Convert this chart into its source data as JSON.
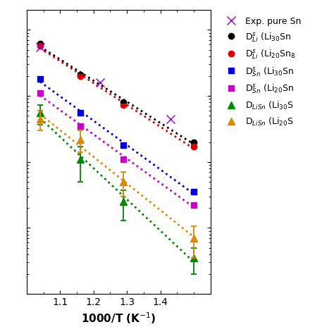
{
  "xlabel": "1000/T (K$^{-1}$)",
  "xlim": [
    1.0,
    1.55
  ],
  "xticks": [
    1.1,
    1.2,
    1.3,
    1.4
  ],
  "background_color": "#ffffff",
  "series": [
    {
      "label": "Exp. pure Sn",
      "color": "#9900cc",
      "marker": "x",
      "linestyle": "none",
      "x": [
        1.04,
        1.22,
        1.43
      ],
      "y": [
        5.5e-09,
        1.6e-09,
        4.5e-10
      ],
      "yerr": null,
      "marker_size": 9,
      "lw": 0,
      "zorder": 5
    },
    {
      "label": "D$^{s}_{Li}$ (Li$_{30}$Sn",
      "color": "#000000",
      "marker": "o",
      "linestyle": "dotted",
      "x": [
        1.04,
        1.16,
        1.29,
        1.5
      ],
      "y": [
        6.2e-09,
        2.1e-09,
        8e-10,
        2e-10
      ],
      "yerr": [
        null,
        8e-11,
        2e-11,
        5e-12
      ],
      "marker_size": 6,
      "lw": 2.0,
      "zorder": 4
    },
    {
      "label": "D$^{s}_{Li}$ (Li$_{20}$Sn$_8$",
      "color": "#dd0000",
      "marker": "o",
      "linestyle": "dotted",
      "x": [
        1.04,
        1.16,
        1.29,
        1.5
      ],
      "y": [
        5.8e-09,
        2e-09,
        7.2e-10,
        1.7e-10
      ],
      "yerr": [
        null,
        8e-11,
        1.5e-11,
        5e-12
      ],
      "marker_size": 6,
      "lw": 2.0,
      "zorder": 4
    },
    {
      "label": "D$^{s}_{Sn}$ (Li$_{30}$Sn",
      "color": "#0000dd",
      "marker": "s",
      "linestyle": "dotted",
      "x": [
        1.04,
        1.16,
        1.29,
        1.5
      ],
      "y": [
        1.8e-09,
        5.5e-10,
        1.8e-10,
        3.5e-11
      ],
      "yerr": [
        null,
        2e-11,
        5e-12,
        1e-12
      ],
      "marker_size": 6,
      "lw": 2.0,
      "zorder": 4
    },
    {
      "label": "D$^{s}_{Sn}$ (Li$_{20}$Sn",
      "color": "#cc00cc",
      "marker": "s",
      "linestyle": "dotted",
      "x": [
        1.04,
        1.16,
        1.29,
        1.5
      ],
      "y": [
        1.1e-09,
        3.5e-10,
        1.1e-10,
        2.2e-11
      ],
      "yerr": [
        null,
        2e-11,
        4e-12,
        8e-13
      ],
      "marker_size": 6,
      "lw": 2.0,
      "zorder": 4
    },
    {
      "label": "D$_{LiSn}$ (Li$_{30}$S",
      "color": "#008800",
      "marker": "^",
      "linestyle": "dotted",
      "x": [
        1.04,
        1.16,
        1.29,
        1.5
      ],
      "y": [
        5.5e-10,
        1.1e-10,
        2.5e-11,
        3.5e-12
      ],
      "yerr": [
        1.8e-10,
        6e-11,
        1.2e-11,
        1.5e-12
      ],
      "marker_size": 7,
      "lw": 2.0,
      "zorder": 4
    },
    {
      "label": "D$_{LiSn}$ (Li$_{20}$S",
      "color": "#dd8800",
      "marker": "^",
      "linestyle": "dotted",
      "x": [
        1.04,
        1.16,
        1.29,
        1.5
      ],
      "y": [
        4.5e-10,
        2.2e-10,
        5e-11,
        7e-12
      ],
      "yerr": [
        1.5e-10,
        8e-11,
        2e-11,
        3.5e-12
      ],
      "marker_size": 7,
      "lw": 2.0,
      "zorder": 4
    }
  ],
  "legend_labels": [
    "Exp. pure Sn",
    "D$^{s}_{Li}$ (Li$_{30}$Sn",
    "D$^{s}_{Li}$ (Li$_{20}$Sn$_{8}$",
    "D$^{s}_{Sn}$ (Li$_{30}$Sn",
    "D$^{s}_{Sn}$ (Li$_{20}$Sn",
    "D$_{LiSn}$ (Li$_{30}$Sn",
    "D$_{LiSn}$ (Li$_{20}$Sn"
  ],
  "legend_fontsize": 9,
  "ymin": 1e-12,
  "ymax": 2e-08
}
